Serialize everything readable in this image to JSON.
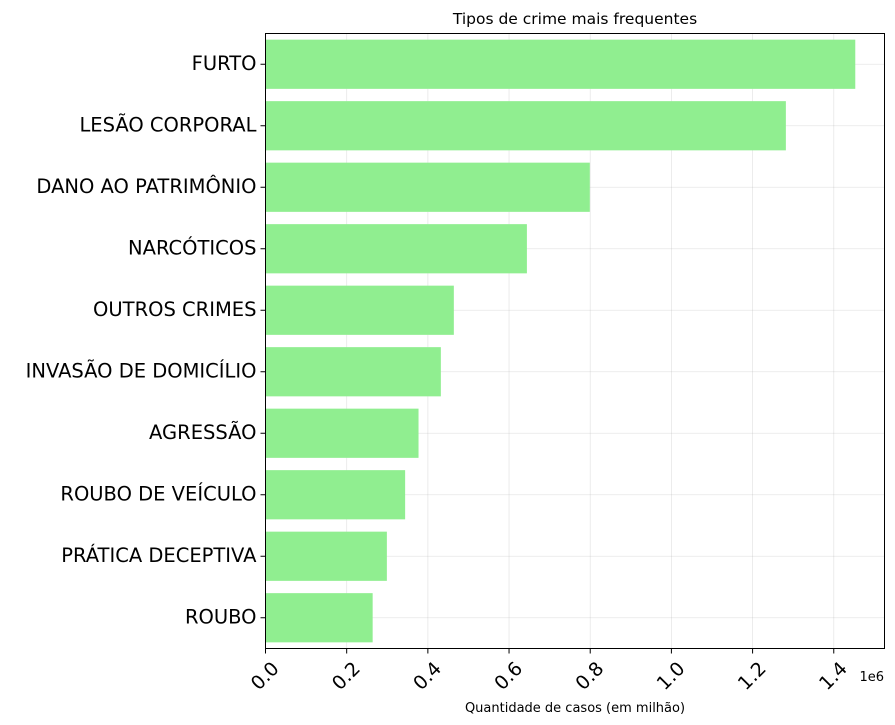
{
  "chart_data": {
    "type": "bar",
    "orientation": "horizontal",
    "title": "Tipos de crime mais frequentes",
    "xlabel": "Quantidade de casos (em milhão)",
    "ylabel": "",
    "x_scale_label": "1e6",
    "categories": [
      "FURTO",
      "LESÃO CORPORAL",
      "DANO AO PATRIMÔNIO",
      "NARCÓTICOS",
      "OUTROS CRIMES",
      "INVASÃO DE DOMICÍLIO",
      "AGRESSÃO",
      "ROUBO DE VEÍCULO",
      "PRÁTICA DECEPTIVA",
      "ROUBO"
    ],
    "values": [
      1453000,
      1282000,
      799000,
      644000,
      464000,
      432000,
      377000,
      344000,
      299000,
      264000
    ],
    "xlim": [
      0,
      1525000
    ],
    "xticks": [
      0,
      200000,
      400000,
      600000,
      800000,
      1000000,
      1200000,
      1400000
    ],
    "xtick_labels": [
      "0.0",
      "0.2",
      "0.4",
      "0.6",
      "0.8",
      "1.0",
      "1.2",
      "1.4"
    ],
    "grid": true,
    "bar_color": "#90ee90"
  }
}
